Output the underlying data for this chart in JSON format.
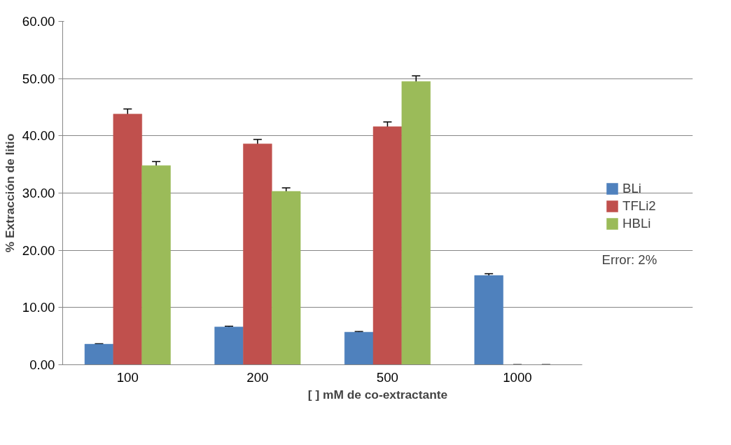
{
  "chart_data": {
    "type": "bar",
    "xlabel": "[ ] mM de co-extractante",
    "ylabel": "% Extracción de litio",
    "categories": [
      "100",
      "200",
      "500",
      "1000"
    ],
    "series": [
      {
        "name": "BLi",
        "color": "#4f81bd",
        "values": [
          3.6,
          6.6,
          5.7,
          15.6
        ],
        "errors": [
          0.07,
          0.13,
          0.11,
          0.31
        ]
      },
      {
        "name": "TFLi2",
        "color": "#c0504d",
        "values": [
          43.8,
          38.6,
          41.6,
          0
        ],
        "errors": [
          0.88,
          0.77,
          0.83,
          0
        ]
      },
      {
        "name": "HBLi",
        "color": "#9bbb59",
        "values": [
          34.8,
          30.3,
          49.5,
          0
        ],
        "errors": [
          0.7,
          0.61,
          0.99,
          0
        ]
      }
    ],
    "ylim": [
      0,
      60
    ],
    "yticks": [
      {
        "value": 0,
        "label": "0.00"
      },
      {
        "value": 10,
        "label": "10.00"
      },
      {
        "value": 20,
        "label": "20.00"
      },
      {
        "value": 30,
        "label": "30.00"
      },
      {
        "value": 40,
        "label": "40.00"
      },
      {
        "value": 50,
        "label": "50.00"
      },
      {
        "value": 60,
        "label": "60.00"
      }
    ],
    "grid": "y",
    "legend": "right",
    "annotations": [
      "Error: 2%"
    ]
  }
}
